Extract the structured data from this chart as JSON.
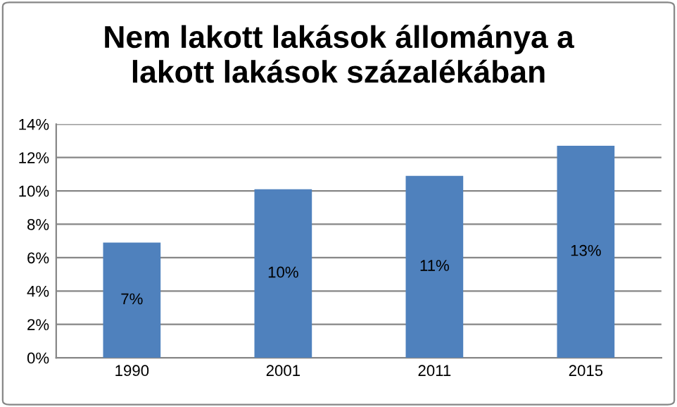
{
  "chart_data": {
    "type": "bar",
    "title": "Nem lakott lakások állománya a\nlakott lakások százalékában",
    "categories": [
      "1990",
      "2001",
      "2011",
      "2015"
    ],
    "values": [
      6.9,
      10.1,
      10.9,
      12.7
    ],
    "value_labels": [
      "7%",
      "10%",
      "11%",
      "13%"
    ],
    "color": "#4f81bd",
    "ylim": [
      0,
      14
    ],
    "yticks": [
      {
        "value": 0,
        "label": "0%"
      },
      {
        "value": 2,
        "label": "2%"
      },
      {
        "value": 4,
        "label": "4%"
      },
      {
        "value": 6,
        "label": "6%"
      },
      {
        "value": 8,
        "label": "8%"
      },
      {
        "value": 10,
        "label": "10%"
      },
      {
        "value": 12,
        "label": "12%"
      },
      {
        "value": 14,
        "label": "14%"
      }
    ],
    "grid": "y",
    "legend": false
  }
}
